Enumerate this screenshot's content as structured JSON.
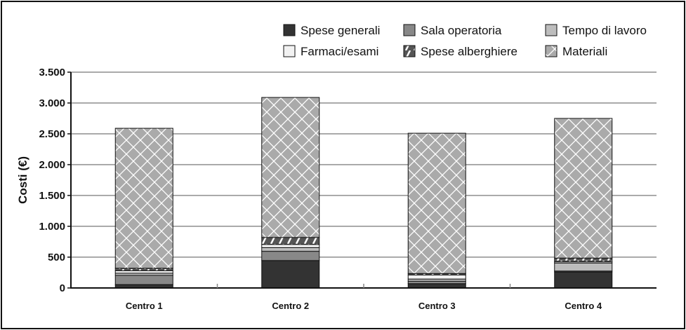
{
  "chart_data": {
    "type": "bar",
    "stacked": true,
    "title": "",
    "xlabel": "",
    "ylabel": "Costi (€)",
    "ylim": [
      0,
      3500
    ],
    "yticks": [
      0,
      500,
      1000,
      1500,
      2000,
      2500,
      3000,
      3500
    ],
    "ytick_labels": [
      "0",
      "500",
      "1.000",
      "1.500",
      "2.000",
      "2.500",
      "3.000",
      "3.500"
    ],
    "grid": true,
    "legend_position": "top-right",
    "categories": [
      "Centro 1",
      "Centro 2",
      "Centro 3",
      "Centro 4"
    ],
    "series": [
      {
        "name": "Spese generali",
        "values": [
          55,
          445,
          70,
          260
        ],
        "color": "#333333",
        "pattern": "solid"
      },
      {
        "name": "Sala operatoria",
        "values": [
          150,
          150,
          40,
          15
        ],
        "color": "#888888",
        "pattern": "solid"
      },
      {
        "name": "Tempo di lavoro",
        "values": [
          35,
          60,
          35,
          130
        ],
        "color": "#bdbdbd",
        "pattern": "solid"
      },
      {
        "name": "Farmaci/esami",
        "values": [
          40,
          50,
          65,
          20
        ],
        "color": "#f2f2f2",
        "pattern": "solid"
      },
      {
        "name": "Spese alberghiere",
        "values": [
          40,
          115,
          25,
          60
        ],
        "color": "#555555",
        "pattern": "diagonal-stripes"
      },
      {
        "name": "Materiali",
        "values": [
          2270,
          2270,
          2275,
          2265
        ],
        "color": "#aaaaaa",
        "pattern": "crosshatch"
      }
    ]
  }
}
